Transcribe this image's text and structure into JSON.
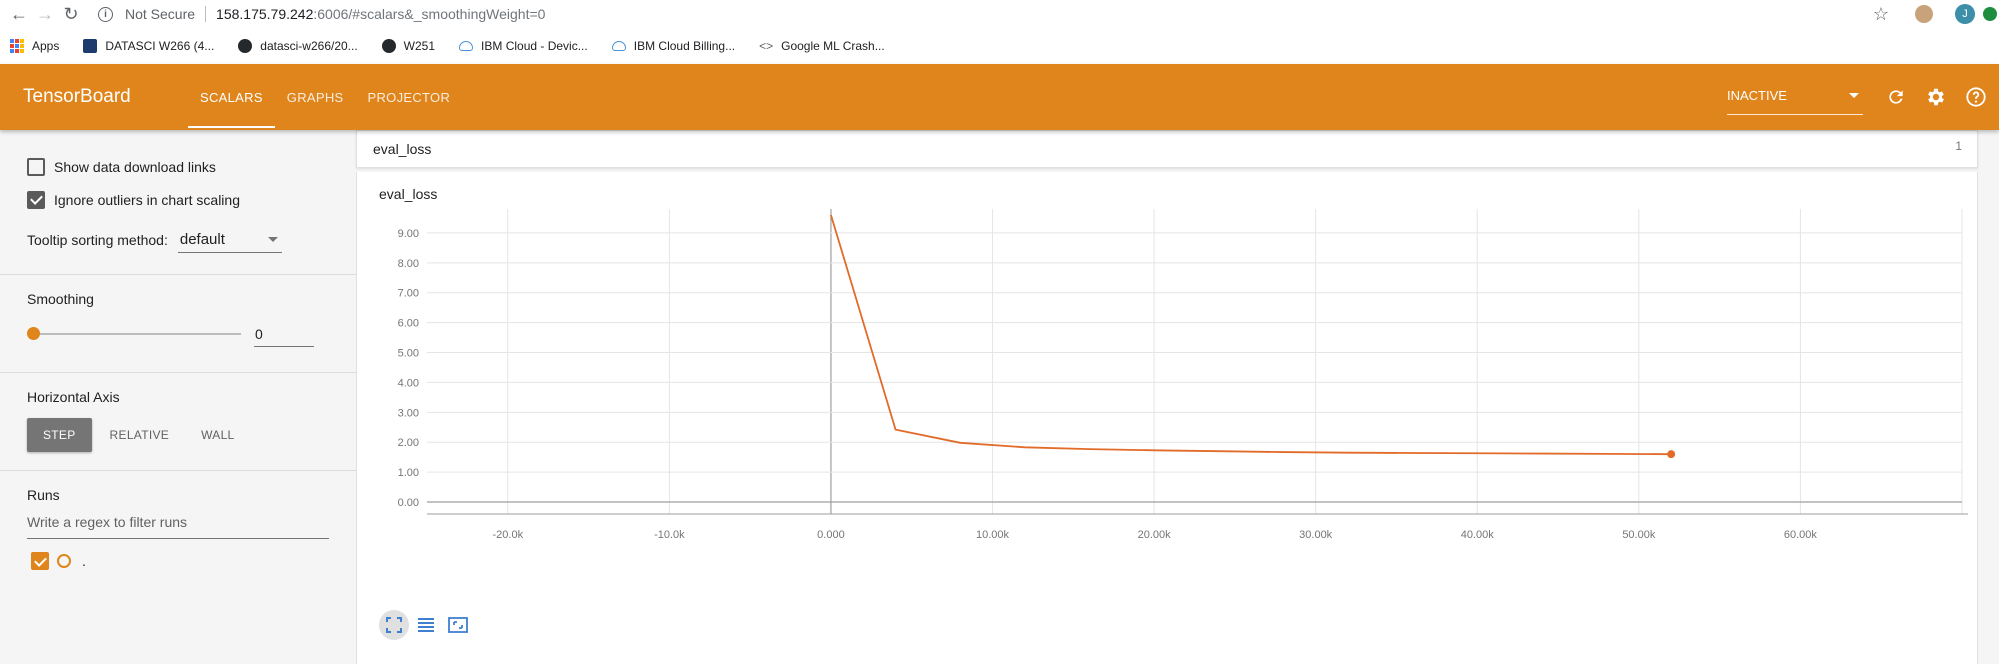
{
  "browser": {
    "not_secure": "Not Secure",
    "url_host": "158.175.79.242",
    "url_rest": ":6006/#scalars&_smoothingWeight=0",
    "avatar_letter": "J",
    "bookmarks": [
      {
        "label": "Apps",
        "icon": "apps-grid-icon"
      },
      {
        "label": "DATASCI W266 (4...",
        "icon": "bookmark-page-icon"
      },
      {
        "label": "datasci-w266/20...",
        "icon": "github-icon"
      },
      {
        "label": "W251",
        "icon": "github-icon"
      },
      {
        "label": "IBM Cloud - Devic...",
        "icon": "cloud-icon"
      },
      {
        "label": "IBM Cloud Billing...",
        "icon": "cloud-icon"
      },
      {
        "label": "Google ML Crash...",
        "icon": "code-icon"
      }
    ]
  },
  "header": {
    "brand": "TensorBoard",
    "tabs": [
      {
        "label": "SCALARS",
        "active": true
      },
      {
        "label": "GRAPHS",
        "active": false
      },
      {
        "label": "PROJECTOR",
        "active": false
      }
    ],
    "status_select": "INACTIVE",
    "accent_color": "#e0851b"
  },
  "sidebar": {
    "show_download_links": {
      "label": "Show data download links",
      "checked": false
    },
    "ignore_outliers": {
      "label": "Ignore outliers in chart scaling",
      "checked": true
    },
    "tooltip_sorting": {
      "label": "Tooltip sorting method:",
      "value": "default"
    },
    "smoothing": {
      "title": "Smoothing",
      "value": "0",
      "fraction": 0
    },
    "horizontal_axis": {
      "title": "Horizontal Axis",
      "options": [
        {
          "label": "STEP",
          "active": true
        },
        {
          "label": "RELATIVE",
          "active": false
        },
        {
          "label": "WALL",
          "active": false
        }
      ]
    },
    "runs": {
      "title": "Runs",
      "filter_placeholder": "Write a regex to filter runs",
      "items": [
        {
          "name": ".",
          "checked": true,
          "color": "#e0851b"
        }
      ]
    }
  },
  "main": {
    "card": {
      "title": "eval_loss",
      "count": "1"
    },
    "chart_title": "eval_loss"
  },
  "chart_data": {
    "type": "line",
    "title": "eval_loss",
    "xlabel": "",
    "ylabel": "",
    "xlim": [
      -25000,
      70000
    ],
    "ylim": [
      -0.2,
      9.8
    ],
    "x_ticks": [
      -20000,
      -10000,
      0,
      10000,
      20000,
      30000,
      40000,
      50000,
      60000
    ],
    "x_tick_labels": [
      "-20.0k",
      "-10.0k",
      "0.000",
      "10.00k",
      "20.00k",
      "30.00k",
      "40.00k",
      "50.00k",
      "60.00k"
    ],
    "y_ticks": [
      0,
      1,
      2,
      3,
      4,
      5,
      6,
      7,
      8,
      9
    ],
    "y_tick_labels": [
      "0.00",
      "1.00",
      "2.00",
      "3.00",
      "4.00",
      "5.00",
      "6.00",
      "7.00",
      "8.00",
      "9.00"
    ],
    "grid": true,
    "series": [
      {
        "color": "#e26b2a",
        "x": [
          0,
          4000,
          8000,
          12000,
          16000,
          20000,
          24000,
          28000,
          32000,
          36000,
          40000,
          44000,
          48000,
          52000
        ],
        "y": [
          9.6,
          2.42,
          1.98,
          1.83,
          1.77,
          1.73,
          1.7,
          1.67,
          1.65,
          1.64,
          1.63,
          1.62,
          1.61,
          1.6
        ]
      }
    ]
  }
}
